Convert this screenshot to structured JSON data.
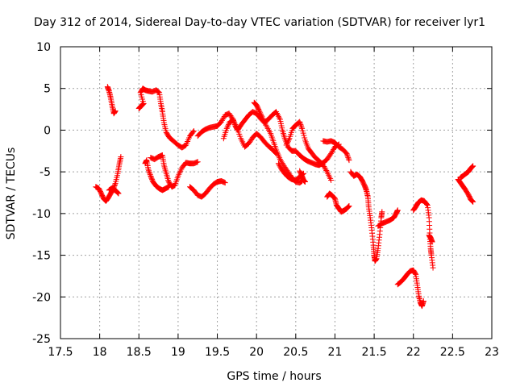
{
  "chart_data": {
    "type": "scatter",
    "title": "Day 312 of 2014, Sidereal Day-to-day VTEC variation (SDTVAR) for receiver lyr1",
    "xlabel": "GPS time / hours",
    "ylabel": "SDTVAR / TECUs",
    "xlim": [
      17.5,
      23
    ],
    "ylim": [
      -25,
      10
    ],
    "xticks": [
      17.5,
      18,
      18.5,
      19,
      19.5,
      20,
      20.5,
      21,
      21.5,
      22,
      22.5,
      23
    ],
    "xtick_labels": [
      "17.5",
      "18",
      "18.5",
      "19",
      "19.5",
      "20",
      "20.5",
      "21",
      "21.5",
      "22",
      "22.5",
      "23"
    ],
    "yticks": [
      10,
      5,
      0,
      -5,
      -10,
      -15,
      -20,
      -25
    ],
    "ytick_labels": [
      "10",
      "5",
      "0",
      "-5",
      "-10",
      "-15",
      "-20",
      "-25"
    ],
    "grid": true,
    "marker": "+",
    "color": "#ff0000",
    "series": [
      {
        "name": "SDTVAR",
        "segments": [
          [
            [
              17.95,
              -6.8
            ],
            [
              17.99,
              -7.0
            ],
            [
              18.02,
              -7.6
            ],
            [
              18.05,
              -8.2
            ],
            [
              18.08,
              -8.5
            ],
            [
              18.11,
              -8.1
            ],
            [
              18.14,
              -7.6
            ],
            [
              18.17,
              -7.1
            ],
            [
              18.2,
              -6.4
            ],
            [
              18.23,
              -5.2
            ],
            [
              18.25,
              -4.1
            ],
            [
              18.27,
              -3.2
            ]
          ],
          [
            [
              18.12,
              -7.2
            ],
            [
              18.15,
              -7.0
            ],
            [
              18.18,
              -7.1
            ],
            [
              18.21,
              -7.3
            ],
            [
              18.24,
              -7.6
            ]
          ],
          [
            [
              18.1,
              5.2
            ],
            [
              18.12,
              4.7
            ],
            [
              18.14,
              3.9
            ],
            [
              18.16,
              2.9
            ],
            [
              18.18,
              2.0
            ],
            [
              18.2,
              2.3
            ]
          ],
          [
            [
              18.5,
              2.6
            ],
            [
              18.52,
              2.8
            ],
            [
              18.54,
              3.0
            ],
            [
              18.56,
              3.2
            ],
            [
              18.52,
              4.5
            ],
            [
              18.55,
              5.0
            ],
            [
              18.58,
              4.8
            ],
            [
              18.62,
              4.7
            ],
            [
              18.67,
              4.6
            ],
            [
              18.72,
              4.8
            ],
            [
              18.76,
              4.5
            ],
            [
              18.78,
              3.2
            ],
            [
              18.8,
              2.2
            ],
            [
              18.82,
              0.9
            ],
            [
              18.85,
              -0.3
            ],
            [
              18.89,
              -0.9
            ],
            [
              18.94,
              -1.3
            ],
            [
              19.0,
              -1.8
            ],
            [
              19.05,
              -2.1
            ],
            [
              19.1,
              -1.8
            ],
            [
              19.15,
              -0.7
            ],
            [
              19.2,
              -0.1
            ]
          ],
          [
            [
              18.58,
              -4.0
            ],
            [
              18.6,
              -3.6
            ],
            [
              18.62,
              -4.7
            ],
            [
              18.65,
              -5.5
            ],
            [
              18.68,
              -6.2
            ],
            [
              18.72,
              -6.7
            ],
            [
              18.76,
              -7.0
            ],
            [
              18.8,
              -7.2
            ],
            [
              18.84,
              -7.0
            ],
            [
              18.88,
              -6.8
            ]
          ],
          [
            [
              18.65,
              -3.3
            ],
            [
              18.7,
              -3.5
            ],
            [
              18.75,
              -3.2
            ],
            [
              18.8,
              -3.0
            ],
            [
              18.82,
              -4.2
            ],
            [
              18.85,
              -5.2
            ],
            [
              18.88,
              -6.2
            ],
            [
              18.92,
              -6.8
            ],
            [
              18.96,
              -6.6
            ],
            [
              19.0,
              -5.5
            ],
            [
              19.05,
              -4.5
            ],
            [
              19.1,
              -3.9
            ],
            [
              19.15,
              -4.0
            ],
            [
              19.2,
              -4.0
            ],
            [
              19.25,
              -3.8
            ]
          ],
          [
            [
              19.15,
              -6.8
            ],
            [
              19.2,
              -7.2
            ],
            [
              19.25,
              -7.8
            ],
            [
              19.3,
              -8.0
            ],
            [
              19.35,
              -7.6
            ],
            [
              19.4,
              -7.0
            ],
            [
              19.45,
              -6.5
            ],
            [
              19.5,
              -6.2
            ],
            [
              19.55,
              -6.1
            ],
            [
              19.6,
              -6.3
            ]
          ],
          [
            [
              19.25,
              -0.7
            ],
            [
              19.3,
              -0.2
            ],
            [
              19.35,
              0.1
            ],
            [
              19.4,
              0.3
            ],
            [
              19.45,
              0.4
            ],
            [
              19.5,
              0.5
            ],
            [
              19.55,
              1.0
            ],
            [
              19.6,
              1.8
            ],
            [
              19.65,
              2.0
            ],
            [
              19.7,
              1.3
            ],
            [
              19.73,
              0.5
            ],
            [
              19.76,
              0.0
            ],
            [
              19.8,
              0.6
            ],
            [
              19.85,
              1.2
            ],
            [
              19.9,
              1.8
            ],
            [
              19.95,
              2.2
            ],
            [
              20.0,
              2.0
            ],
            [
              20.05,
              1.4
            ],
            [
              20.1,
              0.9
            ],
            [
              20.15,
              1.3
            ],
            [
              20.2,
              1.8
            ],
            [
              20.25,
              2.2
            ],
            [
              20.3,
              1.3
            ]
          ],
          [
            [
              19.58,
              -1.0
            ],
            [
              19.62,
              0.2
            ],
            [
              19.66,
              1.0
            ],
            [
              19.7,
              1.2
            ],
            [
              19.75,
              0.3
            ],
            [
              19.8,
              -1.0
            ],
            [
              19.85,
              -2.0
            ],
            [
              19.9,
              -1.6
            ],
            [
              19.95,
              -0.9
            ],
            [
              20.0,
              -0.4
            ],
            [
              20.05,
              -0.8
            ],
            [
              20.1,
              -1.4
            ],
            [
              20.15,
              -1.9
            ],
            [
              20.2,
              -2.3
            ],
            [
              20.25,
              -2.8
            ]
          ],
          [
            [
              19.97,
              3.3
            ],
            [
              20.0,
              3.0
            ],
            [
              20.03,
              2.4
            ],
            [
              20.07,
              1.6
            ],
            [
              20.12,
              0.6
            ],
            [
              20.18,
              -0.4
            ],
            [
              20.22,
              -1.5
            ],
            [
              20.26,
              -2.6
            ],
            [
              20.3,
              -3.5
            ],
            [
              20.35,
              -4.3
            ],
            [
              20.4,
              -5.0
            ],
            [
              20.45,
              -5.7
            ],
            [
              20.5,
              -6.2
            ],
            [
              20.55,
              -6.3
            ],
            [
              20.58,
              -6.1
            ]
          ],
          [
            [
              20.3,
              1.3
            ],
            [
              20.33,
              0.0
            ],
            [
              20.36,
              -1.0
            ],
            [
              20.4,
              -2.0
            ],
            [
              20.45,
              -2.5
            ],
            [
              20.5,
              -2.5
            ],
            [
              20.55,
              -3.0
            ],
            [
              20.6,
              -3.4
            ],
            [
              20.65,
              -3.7
            ],
            [
              20.7,
              -3.9
            ],
            [
              20.75,
              -4.1
            ],
            [
              20.8,
              -4.2
            ],
            [
              20.85,
              -3.9
            ],
            [
              20.9,
              -3.5
            ],
            [
              20.95,
              -2.8
            ],
            [
              21.0,
              -2.0
            ],
            [
              21.05,
              -1.7
            ]
          ],
          [
            [
              20.38,
              -1.8
            ],
            [
              20.42,
              -1.0
            ],
            [
              20.46,
              0.2
            ],
            [
              20.5,
              0.6
            ],
            [
              20.55,
              1.0
            ],
            [
              20.58,
              0.2
            ],
            [
              20.62,
              -1.2
            ],
            [
              20.66,
              -2.2
            ],
            [
              20.7,
              -2.7
            ],
            [
              20.75,
              -3.3
            ],
            [
              20.8,
              -3.7
            ],
            [
              20.85,
              -4.2
            ],
            [
              20.9,
              -5.0
            ],
            [
              20.95,
              -6.0
            ]
          ],
          [
            [
              20.28,
              -4.0
            ],
            [
              20.32,
              -4.7
            ],
            [
              20.36,
              -5.2
            ],
            [
              20.4,
              -5.6
            ],
            [
              20.45,
              -5.9
            ],
            [
              20.5,
              -6.0
            ],
            [
              20.55,
              -5.6
            ],
            [
              20.6,
              -5.2
            ]
          ],
          [
            [
              20.55,
              -4.9
            ],
            [
              20.58,
              -5.5
            ],
            [
              20.6,
              -6.0
            ],
            [
              20.62,
              -6.2
            ]
          ],
          [
            [
              20.85,
              -1.3
            ],
            [
              20.9,
              -1.4
            ],
            [
              20.95,
              -1.3
            ],
            [
              21.0,
              -1.5
            ],
            [
              21.05,
              -2.0
            ],
            [
              21.1,
              -2.3
            ],
            [
              21.15,
              -2.8
            ],
            [
              21.18,
              -3.6
            ]
          ],
          [
            [
              20.9,
              -8.0
            ],
            [
              20.93,
              -7.6
            ],
            [
              20.96,
              -7.8
            ],
            [
              21.0,
              -8.2
            ],
            [
              21.02,
              -9.0
            ],
            [
              21.05,
              -9.4
            ],
            [
              21.08,
              -9.8
            ],
            [
              21.12,
              -9.6
            ],
            [
              21.15,
              -9.4
            ],
            [
              21.18,
              -9.1
            ]
          ],
          [
            [
              21.2,
              -5.0
            ],
            [
              21.24,
              -5.5
            ],
            [
              21.28,
              -5.3
            ],
            [
              21.32,
              -5.6
            ],
            [
              21.35,
              -6.1
            ],
            [
              21.38,
              -6.7
            ],
            [
              21.4,
              -7.2
            ],
            [
              21.42,
              -8.0
            ],
            [
              21.43,
              -9.2
            ],
            [
              21.45,
              -10.5
            ],
            [
              21.47,
              -12.0
            ],
            [
              21.49,
              -13.8
            ],
            [
              21.5,
              -15.0
            ],
            [
              21.51,
              -15.7
            ],
            [
              21.53,
              -15.4
            ],
            [
              21.55,
              -14.2
            ],
            [
              21.57,
              -12.5
            ],
            [
              21.59,
              -10.5
            ],
            [
              21.6,
              -9.8
            ]
          ],
          [
            [
              21.55,
              -11.5
            ],
            [
              21.6,
              -11.2
            ],
            [
              21.65,
              -11.0
            ],
            [
              21.7,
              -10.8
            ],
            [
              21.75,
              -10.5
            ],
            [
              21.78,
              -10.0
            ],
            [
              21.8,
              -9.6
            ]
          ],
          [
            [
              21.8,
              -18.5
            ],
            [
              21.84,
              -18.2
            ],
            [
              21.88,
              -17.8
            ],
            [
              21.92,
              -17.3
            ],
            [
              21.96,
              -16.9
            ],
            [
              22.0,
              -16.8
            ],
            [
              22.03,
              -17.3
            ],
            [
              22.05,
              -18.6
            ],
            [
              22.07,
              -19.9
            ],
            [
              22.09,
              -20.7
            ],
            [
              22.11,
              -21.1
            ],
            [
              22.13,
              -20.5
            ]
          ],
          [
            [
              22.0,
              -9.6
            ],
            [
              22.03,
              -9.2
            ],
            [
              22.06,
              -8.7
            ],
            [
              22.1,
              -8.4
            ],
            [
              22.14,
              -8.5
            ],
            [
              22.18,
              -9.0
            ],
            [
              22.2,
              -10.5
            ],
            [
              22.21,
              -12.8
            ],
            [
              22.22,
              -14.2
            ],
            [
              22.23,
              -15.0
            ],
            [
              22.25,
              -16.5
            ]
          ],
          [
            [
              22.2,
              -12.6
            ],
            [
              22.22,
              -12.9
            ],
            [
              22.24,
              -13.4
            ]
          ],
          [
            [
              22.57,
              -5.9
            ],
            [
              22.6,
              -6.3
            ],
            [
              22.63,
              -6.7
            ],
            [
              22.66,
              -7.1
            ],
            [
              22.7,
              -7.7
            ],
            [
              22.73,
              -8.3
            ],
            [
              22.76,
              -8.6
            ]
          ],
          [
            [
              22.6,
              -5.7
            ],
            [
              22.63,
              -5.5
            ],
            [
              22.67,
              -5.2
            ],
            [
              22.7,
              -5.0
            ],
            [
              22.73,
              -4.6
            ],
            [
              22.76,
              -4.3
            ]
          ]
        ]
      }
    ]
  }
}
